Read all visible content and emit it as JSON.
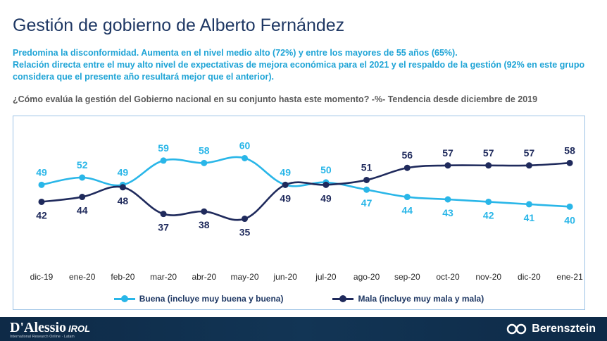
{
  "header": {
    "title": "Gestión de gobierno de Alberto Fernández",
    "subtitle_line1": "Predomina la disconformidad. Aumenta en el nivel medio alto (72%) y entre los mayores de 55 años (65%).",
    "subtitle_line2": "Relación directa entre el muy alto nivel de expectativas de mejora económica para el 2021 y el respaldo de la gestión (92% en este grupo considera que el presente año resultará mejor que el anterior).",
    "question": "¿Cómo evalúa la gestión del Gobierno nacional en su conjunto hasta este momento? -%- Tendencia desde diciembre de 2019"
  },
  "colors": {
    "title": "#1f3864",
    "subtitle": "#1fa4d6",
    "buena": "#29b6e8",
    "mala": "#1f2a5c",
    "border": "#9dc3e6"
  },
  "chart_data": {
    "type": "line",
    "categories": [
      "dic-19",
      "ene-20",
      "feb-20",
      "mar-20",
      "abr-20",
      "may-20",
      "jun-20",
      "jul-20",
      "ago-20",
      "sep-20",
      "oct-20",
      "nov-20",
      "dic-20",
      "ene-21"
    ],
    "series": [
      {
        "name": "Buena (incluye muy buena y buena)",
        "values": [
          49,
          52,
          49,
          59,
          58,
          60,
          49,
          50,
          47,
          44,
          43,
          42,
          41,
          40
        ]
      },
      {
        "name": "Mala (incluye muy mala y mala)",
        "values": [
          42,
          44,
          48,
          37,
          38,
          35,
          49,
          49,
          51,
          56,
          57,
          57,
          57,
          58
        ]
      }
    ],
    "title": "",
    "xlabel": "",
    "ylabel": "",
    "ylim": [
      25,
      70
    ],
    "grid": false,
    "legend": "bottom"
  },
  "footer": {
    "brand_left": "D'Alessio",
    "brand_left_suffix": "IROL",
    "brand_left_tagline": "International Research Online · Latam",
    "brand_right": "Berensztein"
  }
}
